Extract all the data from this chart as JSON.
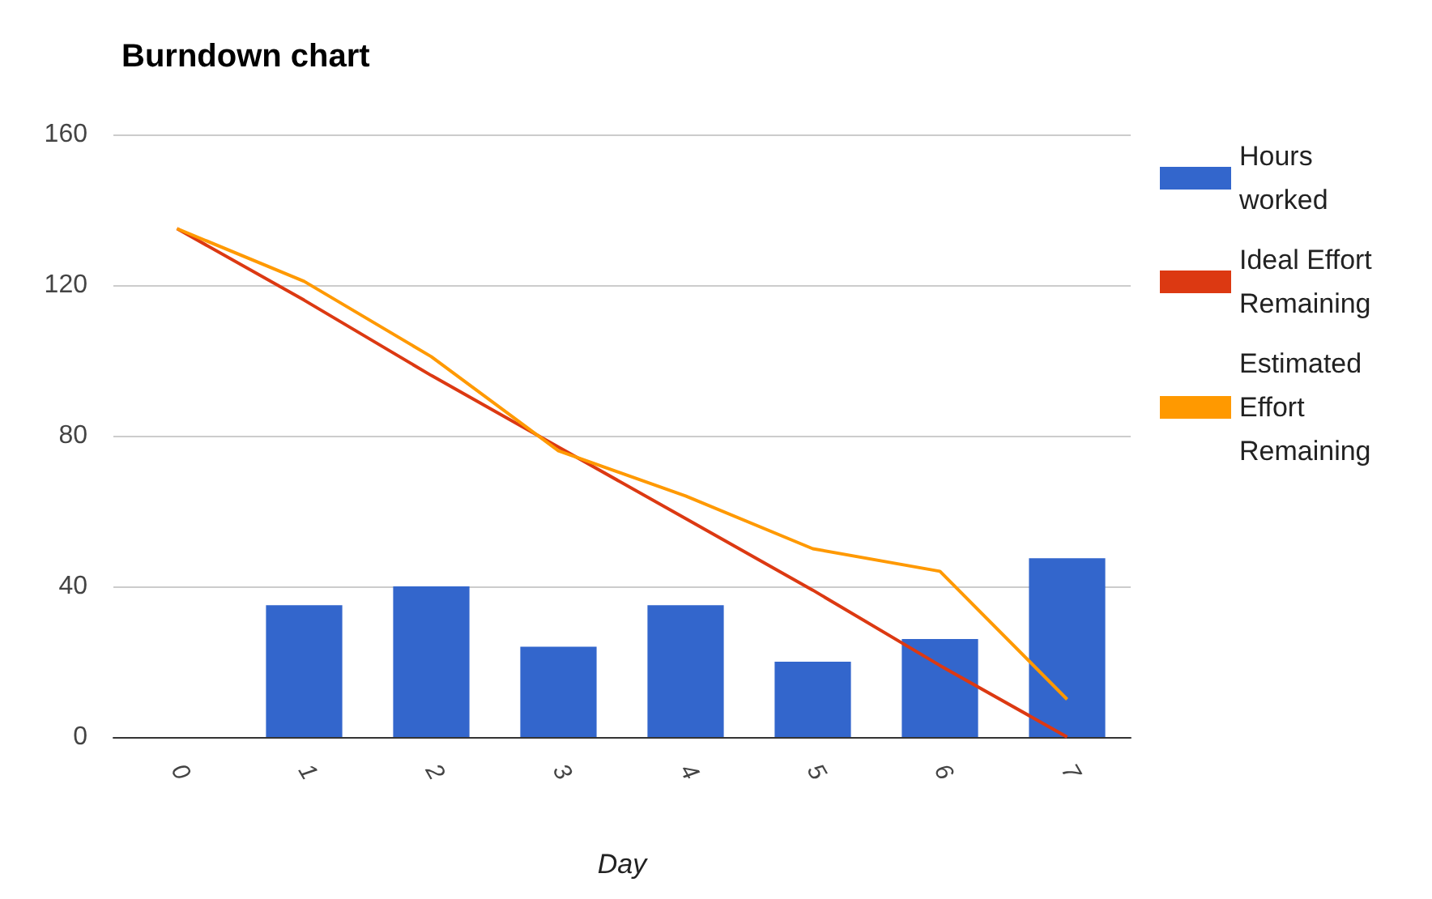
{
  "chart_data": {
    "type": "bar",
    "title": "Burndown chart",
    "xlabel": "Day",
    "categories": [
      "0",
      "1",
      "2",
      "3",
      "4",
      "5",
      "6",
      "7"
    ],
    "series": [
      {
        "name": "Hours worked",
        "color": "#3366cc",
        "values": [
          0,
          35,
          40,
          24,
          35,
          20,
          26,
          47.5
        ]
      },
      {
        "name": "Ideal Effort Remaining",
        "type": "line",
        "color": "#dc3912",
        "values": [
          135,
          116,
          96,
          77,
          58,
          39,
          19,
          0
        ]
      },
      {
        "name": "Estimated Effort Remaining",
        "type": "line",
        "color": "#ff9900",
        "values": [
          135,
          121,
          101,
          76,
          64,
          50,
          44,
          10
        ]
      }
    ],
    "ylim": [
      0,
      160
    ],
    "yticks": [
      0,
      40,
      80,
      120,
      160
    ],
    "grid": "y",
    "legend": "right",
    "marker": "none",
    "line_style": "solid"
  }
}
